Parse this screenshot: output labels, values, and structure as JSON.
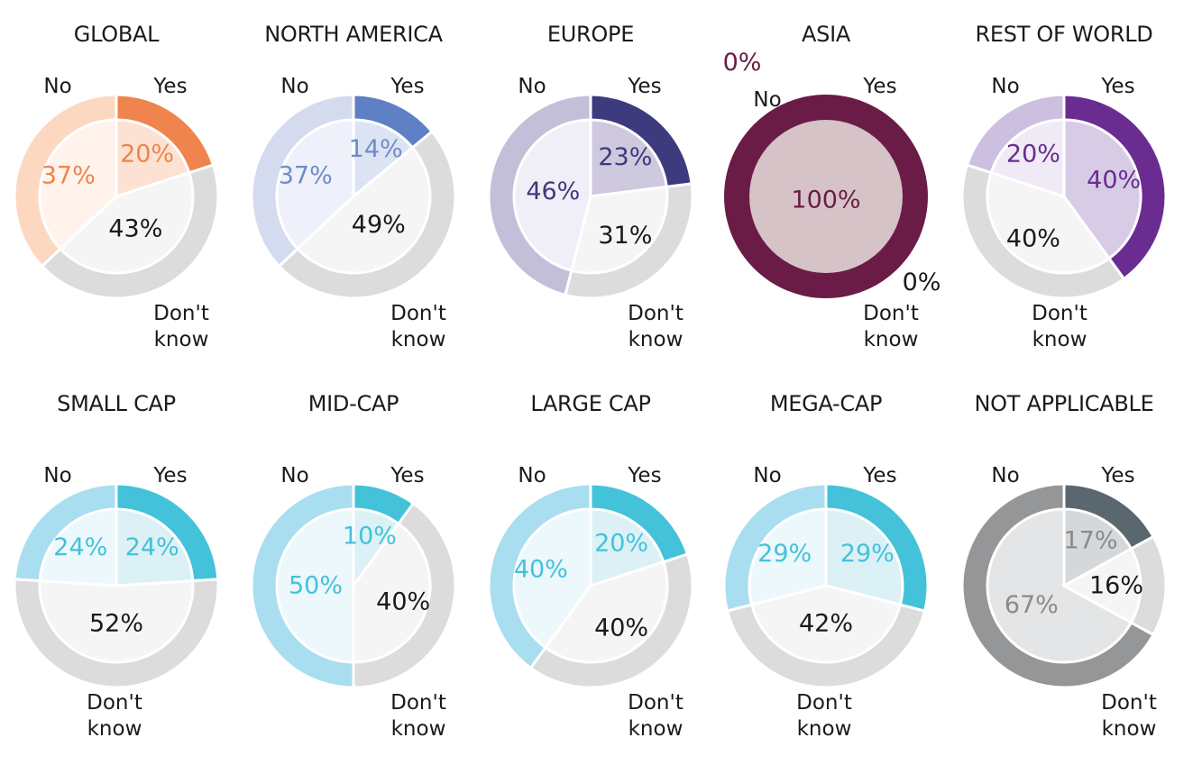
{
  "chart_data": [
    {
      "type": "pie",
      "title": "GLOBAL",
      "categories": [
        "Yes",
        "No",
        "Don't know"
      ],
      "values": [
        20,
        37,
        43
      ],
      "value_labels": [
        "20%",
        "37%",
        "43%"
      ],
      "colors": {
        "yes": {
          "outer": "#ef844c",
          "inner": "#fde2d3",
          "text": "#ef844c"
        },
        "no": {
          "outer": "#fdd8c1",
          "inner": "#fff3ec",
          "text": "#ef844c"
        },
        "dk": {
          "outer": "#dcdcdc",
          "inner": "#f5f5f5",
          "text": "#1a1a1a"
        }
      }
    },
    {
      "type": "pie",
      "title": "NORTH AMERICA",
      "categories": [
        "Yes",
        "No",
        "Don't know"
      ],
      "values": [
        14,
        37,
        49
      ],
      "value_labels": [
        "14%",
        "37%",
        "49%"
      ],
      "colors": {
        "yes": {
          "outer": "#5f80c4",
          "inner": "#dce4f4",
          "text": "#6f8cc8"
        },
        "no": {
          "outer": "#d5dbef",
          "inner": "#eef1f9",
          "text": "#6f8cc8"
        },
        "dk": {
          "outer": "#dcdcdc",
          "inner": "#f5f5f5",
          "text": "#1a1a1a"
        }
      }
    },
    {
      "type": "pie",
      "title": "EUROPE",
      "categories": [
        "Yes",
        "No",
        "Don't know"
      ],
      "values": [
        23,
        46,
        31
      ],
      "value_labels": [
        "23%",
        "46%",
        "31%"
      ],
      "colors": {
        "yes": {
          "outer": "#3d3a7e",
          "inner": "#cfc9df",
          "text": "#3d3a7e"
        },
        "no": {
          "outer": "#c3bfd9",
          "inner": "#f0eef6",
          "text": "#3d3a7e"
        },
        "dk": {
          "outer": "#dcdcdc",
          "inner": "#f5f5f5",
          "text": "#1a1a1a"
        }
      }
    },
    {
      "type": "pie",
      "title": "ASIA",
      "categories": [
        "Yes",
        "No",
        "Don't know"
      ],
      "values": [
        100,
        0,
        0
      ],
      "value_labels": [
        "100%",
        "0%",
        "0%"
      ],
      "colors": {
        "yes": {
          "outer": "#6a1c46",
          "inner": "#d5c3c7",
          "text": "#6a1c46"
        },
        "no": {
          "outer": "#6a1c46",
          "inner": "#d5c3c7",
          "text": "#6a1c46"
        },
        "dk": {
          "outer": "#6a1c46",
          "inner": "#d5c3c7",
          "text": "#1a1a1a"
        }
      }
    },
    {
      "type": "pie",
      "title": "REST OF WORLD",
      "categories": [
        "Yes",
        "No",
        "Don't know"
      ],
      "values": [
        40,
        20,
        40
      ],
      "value_labels": [
        "40%",
        "20%",
        "40%"
      ],
      "colors": {
        "yes": {
          "outer": "#6a2c91",
          "inner": "#d8cbe6",
          "text": "#6a2c91"
        },
        "no": {
          "outer": "#cdbfdf",
          "inner": "#efeaf5",
          "text": "#6a2c91"
        },
        "dk": {
          "outer": "#dcdcdc",
          "inner": "#f5f5f5",
          "text": "#1a1a1a"
        }
      }
    },
    {
      "type": "pie",
      "title": "SMALL CAP",
      "categories": [
        "Yes",
        "No",
        "Don't know"
      ],
      "values": [
        24,
        24,
        52
      ],
      "value_labels": [
        "24%",
        "24%",
        "52%"
      ],
      "colors": {
        "yes": {
          "outer": "#43c2d9",
          "inner": "#dbf1f6",
          "text": "#43c2d9"
        },
        "no": {
          "outer": "#a9def0",
          "inner": "#ecf8fb",
          "text": "#43c2d9"
        },
        "dk": {
          "outer": "#dcdcdc",
          "inner": "#f5f5f5",
          "text": "#1a1a1a"
        }
      }
    },
    {
      "type": "pie",
      "title": "MID-CAP",
      "categories": [
        "Yes",
        "No",
        "Don't know"
      ],
      "values": [
        10,
        50,
        40
      ],
      "value_labels": [
        "10%",
        "50%",
        "40%"
      ],
      "colors": {
        "yes": {
          "outer": "#43c2d9",
          "inner": "#dbf1f6",
          "text": "#43c2d9"
        },
        "no": {
          "outer": "#a9def0",
          "inner": "#ecf8fb",
          "text": "#43c2d9"
        },
        "dk": {
          "outer": "#dcdcdc",
          "inner": "#f5f5f5",
          "text": "#1a1a1a"
        }
      }
    },
    {
      "type": "pie",
      "title": "LARGE CAP",
      "categories": [
        "Yes",
        "No",
        "Don't know"
      ],
      "values": [
        20,
        40,
        40
      ],
      "value_labels": [
        "20%",
        "40%",
        "40%"
      ],
      "colors": {
        "yes": {
          "outer": "#43c2d9",
          "inner": "#dbf1f6",
          "text": "#43c2d9"
        },
        "no": {
          "outer": "#a9def0",
          "inner": "#ecf8fb",
          "text": "#43c2d9"
        },
        "dk": {
          "outer": "#dcdcdc",
          "inner": "#f5f5f5",
          "text": "#1a1a1a"
        }
      }
    },
    {
      "type": "pie",
      "title": "MEGA-CAP",
      "categories": [
        "Yes",
        "No",
        "Don't know"
      ],
      "values": [
        29,
        29,
        42
      ],
      "value_labels": [
        "29%",
        "29%",
        "42%"
      ],
      "colors": {
        "yes": {
          "outer": "#43c2d9",
          "inner": "#dbf1f6",
          "text": "#43c2d9"
        },
        "no": {
          "outer": "#a9def0",
          "inner": "#ecf8fb",
          "text": "#43c2d9"
        },
        "dk": {
          "outer": "#dcdcdc",
          "inner": "#f5f5f5",
          "text": "#1a1a1a"
        }
      }
    },
    {
      "type": "pie",
      "title": "NOT APPLICABLE",
      "categories": [
        "Yes",
        "No",
        "Don't know"
      ],
      "values": [
        17,
        67,
        16
      ],
      "value_labels": [
        "17%",
        "67%",
        "16%"
      ],
      "colors": {
        "yes": {
          "outer": "#5a676e",
          "inner": "#d5d8da",
          "text": "#8a8a8a"
        },
        "no": {
          "outer": "#959697",
          "inner": "#e4e5e6",
          "text": "#8a8a8a"
        },
        "dk": {
          "outer": "#dcdcdc",
          "inner": "#f5f5f5",
          "text": "#1a1a1a"
        }
      }
    }
  ],
  "labels": {
    "yes": "Yes",
    "no": "No",
    "dk_line1": "Don't",
    "dk_line2": "know"
  }
}
